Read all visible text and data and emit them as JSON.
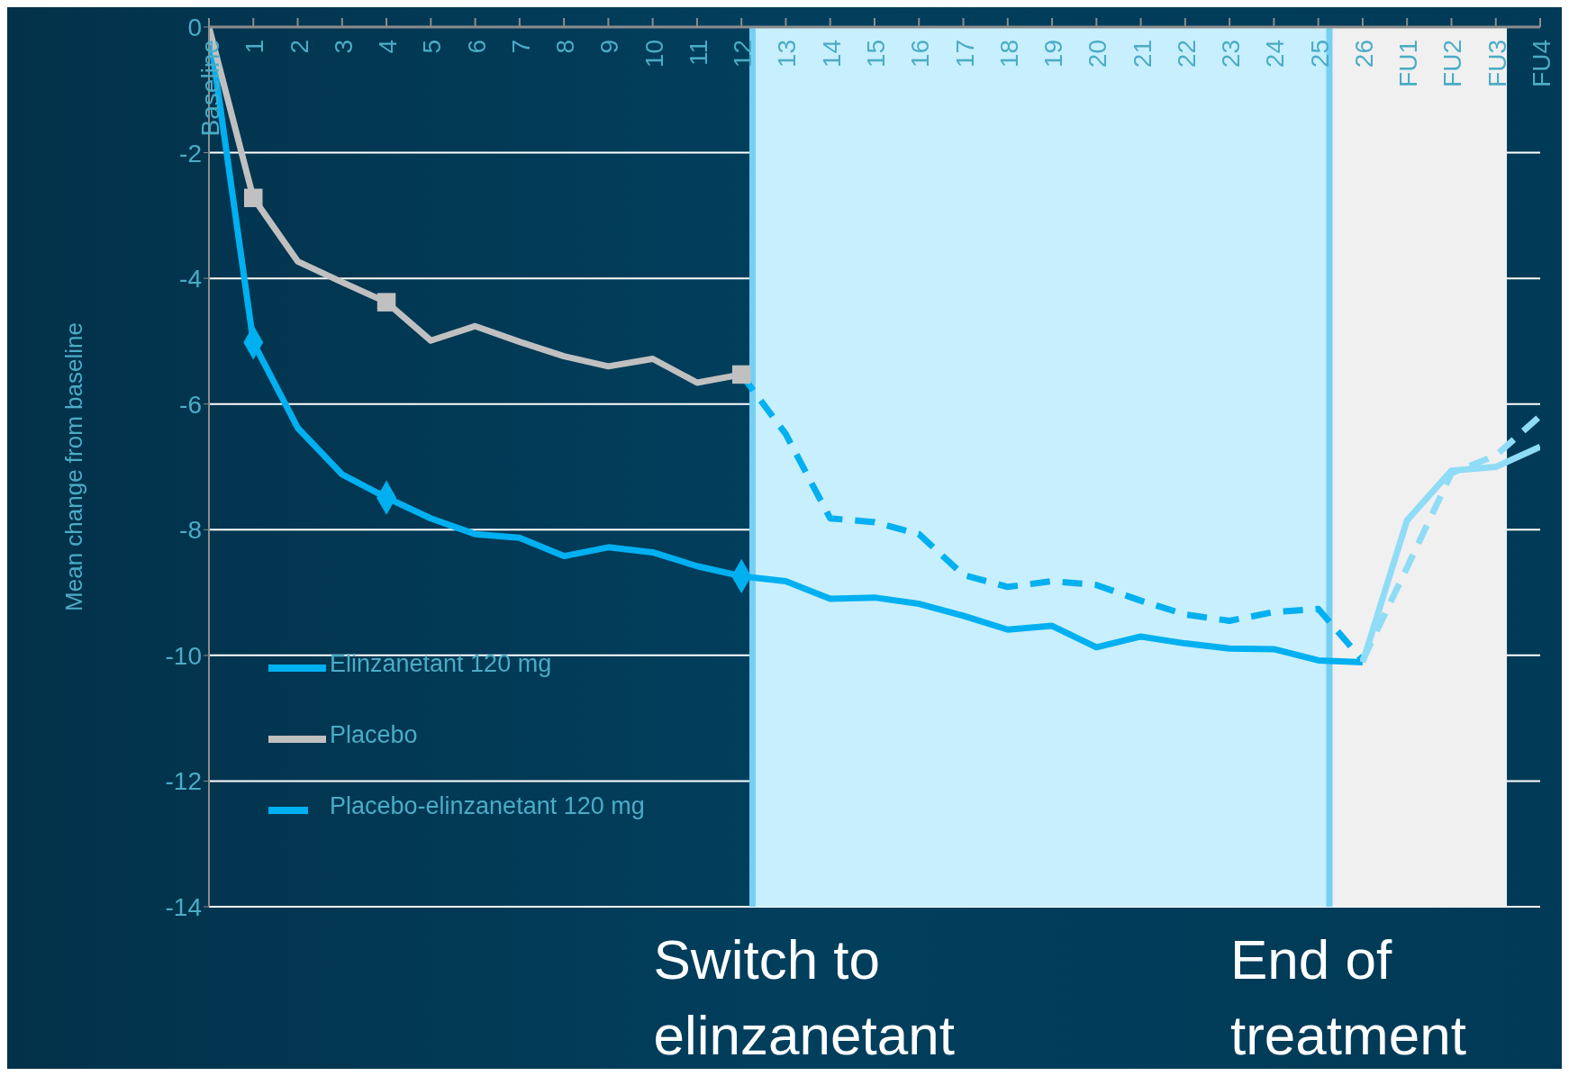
{
  "chart_data": {
    "type": "line",
    "ylabel": "Mean change from baseline",
    "categories": [
      "Baseline",
      "1",
      "2",
      "3",
      "4",
      "5",
      "6",
      "7",
      "8",
      "9",
      "10",
      "11",
      "12",
      "13",
      "14",
      "15",
      "16",
      "17",
      "18",
      "19",
      "20",
      "21",
      "22",
      "23",
      "24",
      "25",
      "26",
      "FU1",
      "FU2",
      "FU3",
      "FU4"
    ],
    "series": [
      {
        "name": "Elinzanetant 120 mg",
        "color": "#00b0f0",
        "line_style": "solid",
        "marker": "none",
        "values": [
          0,
          -5.02,
          -6.38,
          -7.12,
          -7.49,
          -7.82,
          -8.07,
          -8.13,
          -8.42,
          -8.28,
          -8.36,
          -8.58,
          -8.74,
          -8.82,
          -9.1,
          -9.08,
          -9.18,
          -9.37,
          -9.59,
          -9.53,
          -9.87,
          -9.7,
          -9.81,
          -9.89,
          -9.9,
          -10.08,
          -10.11,
          null,
          null,
          null,
          null
        ]
      },
      {
        "name": "Placebo",
        "color": "#c0c0c0",
        "line_style": "solid",
        "marker": "none",
        "values": [
          0,
          -2.72,
          -3.73,
          -4.06,
          -4.38,
          -4.99,
          -4.76,
          -5.01,
          -5.24,
          -5.4,
          -5.28,
          -5.66,
          -5.53,
          null,
          null,
          null,
          null,
          null,
          null,
          null,
          null,
          null,
          null,
          null,
          null,
          null,
          null,
          null,
          null,
          null,
          null
        ]
      },
      {
        "name": "Placebo-elinzanetant 120 mg",
        "color": "#00b0f0",
        "line_style": "dashed",
        "marker": "none",
        "values": [
          null,
          null,
          null,
          null,
          null,
          null,
          null,
          null,
          null,
          null,
          null,
          null,
          -5.53,
          -6.48,
          -7.82,
          -7.88,
          -8.07,
          -8.72,
          -8.91,
          -8.82,
          -8.88,
          -9.13,
          -9.35,
          -9.45,
          -9.31,
          -9.26,
          -10.08,
          null,
          null,
          null,
          null
        ]
      },
      {
        "color": "#8fdcf7",
        "line_style": "solid",
        "marker": "none",
        "values": [
          null,
          null,
          null,
          null,
          null,
          null,
          null,
          null,
          null,
          null,
          null,
          null,
          null,
          null,
          null,
          null,
          null,
          null,
          null,
          null,
          null,
          null,
          null,
          null,
          null,
          null,
          -10.11,
          -7.85,
          -7.06,
          -7.0,
          -6.68
        ]
      },
      {
        "color": "#8fdcf7",
        "line_style": "dashed",
        "marker": "none",
        "values": [
          null,
          null,
          null,
          null,
          null,
          null,
          null,
          null,
          null,
          null,
          null,
          null,
          null,
          null,
          null,
          null,
          null,
          null,
          null,
          null,
          null,
          null,
          null,
          null,
          null,
          null,
          -10.08,
          -8.6,
          -7.1,
          -6.82,
          -6.19
        ]
      },
      {
        "type": "scatter",
        "color": "#00b0f0",
        "marker": "diamond",
        "values": [
          null,
          -5.02,
          null,
          null,
          -7.49,
          null,
          null,
          null,
          null,
          null,
          null,
          null,
          -8.74,
          null,
          null,
          null,
          null,
          null,
          null,
          null,
          null,
          null,
          null,
          null,
          null,
          null,
          null,
          null,
          null,
          null,
          null
        ]
      },
      {
        "type": "scatter",
        "color": "#c0c0c0",
        "marker": "square",
        "values": [
          null,
          -2.72,
          null,
          null,
          -4.38,
          null,
          null,
          null,
          null,
          null,
          null,
          null,
          -5.53,
          null,
          null,
          null,
          null,
          null,
          null,
          null,
          null,
          null,
          null,
          null,
          null,
          null,
          null,
          null,
          null,
          null,
          null
        ]
      }
    ],
    "ylim": [
      -14,
      0
    ],
    "yticks": [
      -14,
      -12,
      -10,
      -8,
      -6,
      -4,
      -2,
      0
    ],
    "bands": [
      {
        "axis": "x",
        "from": "12",
        "to": "25",
        "color": "#c8effd"
      },
      {
        "axis": "x",
        "from": "25",
        "to": "FU3",
        "color": "#f0f0f0"
      }
    ],
    "ref_lines": [
      {
        "axis": "x",
        "value": "12",
        "label": "Switch to elinzanetant",
        "color": "#75d0f5"
      },
      {
        "axis": "x",
        "value": "25",
        "label": "End of treatment",
        "color": "#75d0f5"
      }
    ],
    "grid": "y",
    "legend": "bottom left"
  }
}
